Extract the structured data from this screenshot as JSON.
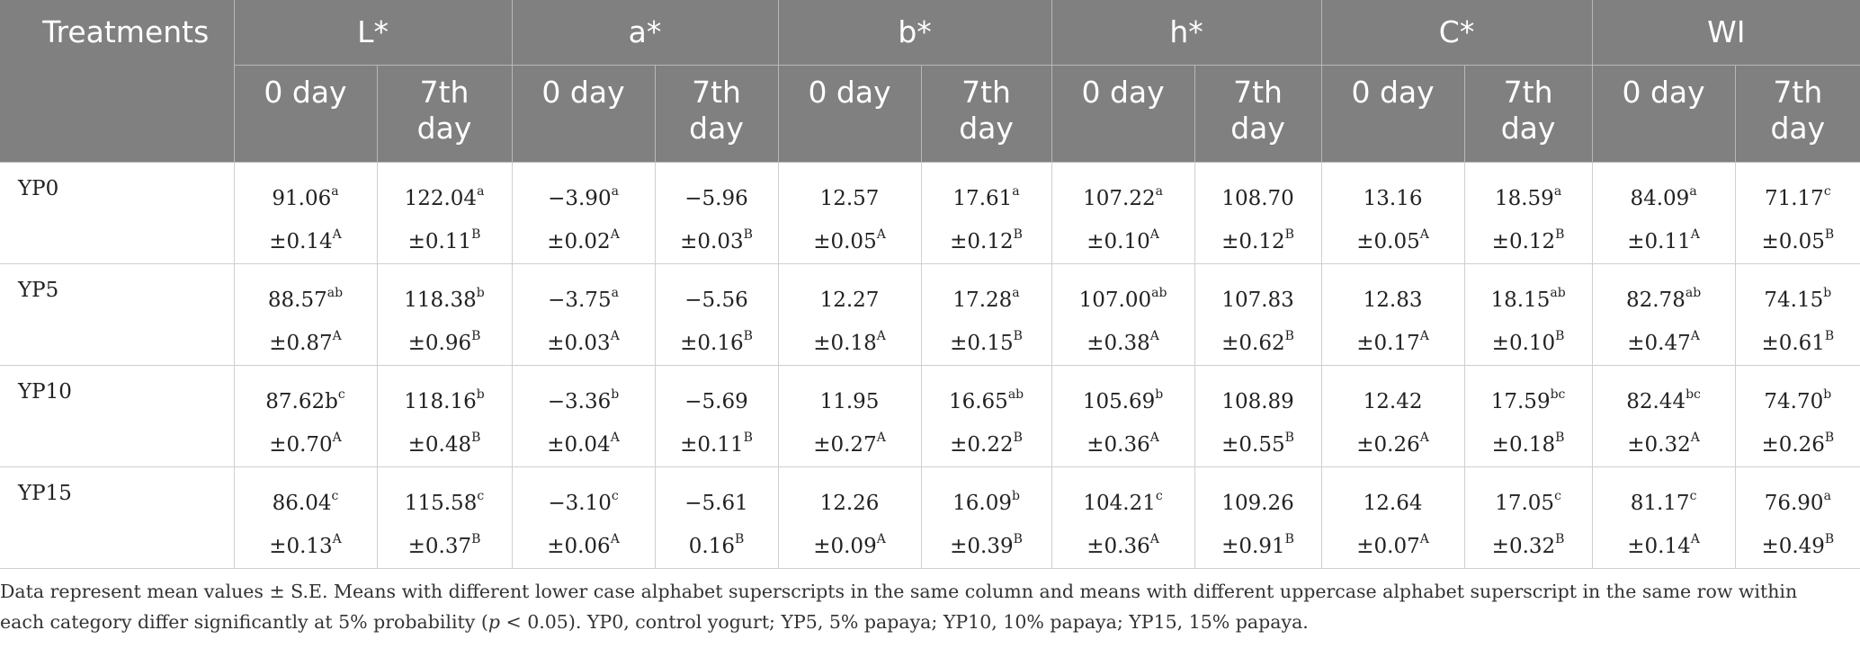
{
  "table": {
    "header_treatments": "Treatments",
    "groups": [
      "L*",
      "a*",
      "b*",
      "h*",
      "C*",
      "WI"
    ],
    "subheaders": [
      "0 day",
      "7th day",
      "0 day",
      "7th day",
      "0 day",
      "7th day",
      "0 day",
      "7th day",
      "0 day",
      "7th day",
      "0 day",
      "7th day"
    ],
    "rows": [
      {
        "label": "YP0",
        "cells": [
          {
            "v": "91.06",
            "vs": "a",
            "se": "±0.14",
            "ss": "A"
          },
          {
            "v": "122.04",
            "vs": "a",
            "se": "±0.11",
            "ss": "B"
          },
          {
            "v": "−3.90",
            "vs": "a",
            "se": "±0.02",
            "ss": "A"
          },
          {
            "v": "−5.96",
            "vs": "",
            "se": "±0.03",
            "ss": "B"
          },
          {
            "v": "12.57",
            "vs": "",
            "se": "±0.05",
            "ss": "A"
          },
          {
            "v": "17.61",
            "vs": "a",
            "se": "±0.12",
            "ss": "B"
          },
          {
            "v": "107.22",
            "vs": "a",
            "se": "±0.10",
            "ss": "A"
          },
          {
            "v": "108.70",
            "vs": "",
            "se": "±0.12",
            "ss": "B"
          },
          {
            "v": "13.16",
            "vs": "",
            "se": "±0.05",
            "ss": "A"
          },
          {
            "v": "18.59",
            "vs": "a",
            "se": "±0.12",
            "ss": "B"
          },
          {
            "v": "84.09",
            "vs": "a",
            "se": "±0.11",
            "ss": "A"
          },
          {
            "v": "71.17",
            "vs": "c",
            "se": "±0.05",
            "ss": "B"
          }
        ]
      },
      {
        "label": "YP5",
        "cells": [
          {
            "v": "88.57",
            "vs": "ab",
            "se": "±0.87",
            "ss": "A"
          },
          {
            "v": "118.38",
            "vs": "b",
            "se": "±0.96",
            "ss": "B"
          },
          {
            "v": "−3.75",
            "vs": "a",
            "se": "±0.03",
            "ss": "A"
          },
          {
            "v": "−5.56",
            "vs": "",
            "se": "±0.16",
            "ss": "B"
          },
          {
            "v": "12.27",
            "vs": "",
            "se": "±0.18",
            "ss": "A"
          },
          {
            "v": "17.28",
            "vs": "a",
            "se": "±0.15",
            "ss": "B"
          },
          {
            "v": "107.00",
            "vs": "ab",
            "se": "±0.38",
            "ss": "A"
          },
          {
            "v": "107.83",
            "vs": "",
            "se": "±0.62",
            "ss": "B"
          },
          {
            "v": "12.83",
            "vs": "",
            "se": "±0.17",
            "ss": "A"
          },
          {
            "v": "18.15",
            "vs": "ab",
            "se": "±0.10",
            "ss": "B"
          },
          {
            "v": "82.78",
            "vs": "ab",
            "se": "±0.47",
            "ss": "A"
          },
          {
            "v": "74.15",
            "vs": "b",
            "se": "±0.61",
            "ss": "B"
          }
        ]
      },
      {
        "label": "YP10",
        "cells": [
          {
            "v": "87.62b",
            "vs": "c",
            "se": "±0.70",
            "ss": "A"
          },
          {
            "v": "118.16",
            "vs": "b",
            "se": "±0.48",
            "ss": "B"
          },
          {
            "v": "−3.36",
            "vs": "b",
            "se": "±0.04",
            "ss": "A"
          },
          {
            "v": "−5.69",
            "vs": "",
            "se": "±0.11",
            "ss": "B"
          },
          {
            "v": "11.95",
            "vs": "",
            "se": "±0.27",
            "ss": "A"
          },
          {
            "v": "16.65",
            "vs": "ab",
            "se": "±0.22",
            "ss": "B"
          },
          {
            "v": "105.69",
            "vs": "b",
            "se": "±0.36",
            "ss": "A"
          },
          {
            "v": "108.89",
            "vs": "",
            "se": "±0.55",
            "ss": "B"
          },
          {
            "v": "12.42",
            "vs": "",
            "se": "±0.26",
            "ss": "A"
          },
          {
            "v": "17.59",
            "vs": "bc",
            "se": "±0.18",
            "ss": "B"
          },
          {
            "v": "82.44",
            "vs": "bc",
            "se": "±0.32",
            "ss": "A"
          },
          {
            "v": "74.70",
            "vs": "b",
            "se": "±0.26",
            "ss": "B"
          }
        ]
      },
      {
        "label": "YP15",
        "cells": [
          {
            "v": "86.04",
            "vs": "c",
            "se": "±0.13",
            "ss": "A"
          },
          {
            "v": "115.58",
            "vs": "c",
            "se": "±0.37",
            "ss": "B"
          },
          {
            "v": "−3.10",
            "vs": "c",
            "se": "±0.06",
            "ss": "A"
          },
          {
            "v": "−5.61",
            "vs": "",
            "se": "0.16",
            "ss": "B"
          },
          {
            "v": "12.26",
            "vs": "",
            "se": "±0.09",
            "ss": "A"
          },
          {
            "v": "16.09",
            "vs": "b",
            "se": "±0.39",
            "ss": "B"
          },
          {
            "v": "104.21",
            "vs": "c",
            "se": "±0.36",
            "ss": "A"
          },
          {
            "v": "109.26",
            "vs": "",
            "se": "±0.91",
            "ss": "B"
          },
          {
            "v": "12.64",
            "vs": "",
            "se": "±0.07",
            "ss": "A"
          },
          {
            "v": "17.05",
            "vs": "c",
            "se": "±0.32",
            "ss": "B"
          },
          {
            "v": "81.17",
            "vs": "c",
            "se": "±0.14",
            "ss": "A"
          },
          {
            "v": "76.90",
            "vs": "a",
            "se": "±0.49",
            "ss": "B"
          }
        ]
      }
    ]
  },
  "footnote": {
    "line1": "Data represent mean values ± S.E. Means with different lower case alphabet superscripts in the same column and means with different uppercase alphabet superscript in the same row within",
    "line2_before_p": "each category differ significantly at 5% probability (",
    "p_symbol": "p",
    "line2_after_p": " < 0.05). YP0, control yogurt; YP5, 5% papaya; YP10, 10% papaya; YP15, 15% papaya."
  },
  "colors": {
    "header_bg": "#808080",
    "header_text": "#ffffff",
    "body_text": "#222222",
    "grid": "#cfcfcf"
  }
}
